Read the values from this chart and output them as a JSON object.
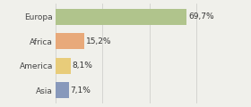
{
  "categories": [
    "Europa",
    "Africa",
    "America",
    "Asia"
  ],
  "values": [
    69.7,
    15.2,
    8.1,
    7.1
  ],
  "labels": [
    "69,7%",
    "15,2%",
    "8,1%",
    "7,1%"
  ],
  "bar_colors": [
    "#b0c48c",
    "#e8a97a",
    "#e8cc7a",
    "#8899bb"
  ],
  "background_color": "#f0f0eb",
  "xlim": [
    0,
    100
  ],
  "bar_height": 0.65,
  "label_fontsize": 6.5,
  "category_fontsize": 6.5,
  "grid_color": "#d0d0cc",
  "grid_xticks": [
    0,
    25,
    50,
    75,
    100
  ]
}
